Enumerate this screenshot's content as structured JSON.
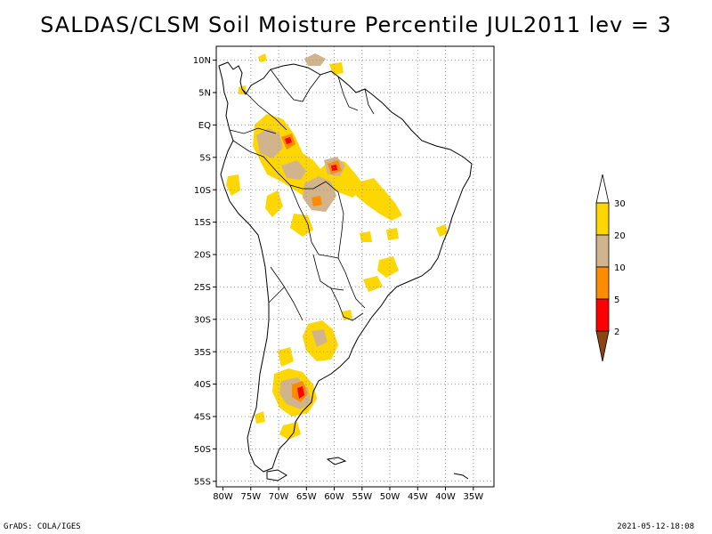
{
  "title": "SALDAS/CLSM Soil Moisture Percentile JUL2011 lev = 3",
  "footer": {
    "left": "GrADS: COLA/IGES",
    "right": "2021-05-12-18:08"
  },
  "map": {
    "lon_range": [
      -80,
      -33
    ],
    "lat_range": [
      -56,
      12
    ],
    "lon_ticks": [
      {
        "value": -80,
        "label": "80W"
      },
      {
        "value": -75,
        "label": "75W"
      },
      {
        "value": -70,
        "label": "70W"
      },
      {
        "value": -65,
        "label": "65W"
      },
      {
        "value": -60,
        "label": "60W"
      },
      {
        "value": -55,
        "label": "55W"
      },
      {
        "value": -50,
        "label": "50W"
      },
      {
        "value": -45,
        "label": "45W"
      },
      {
        "value": -40,
        "label": "40W"
      },
      {
        "value": -35,
        "label": "35W"
      }
    ],
    "lat_ticks": [
      {
        "value": 10,
        "label": "10N"
      },
      {
        "value": 5,
        "label": "5N"
      },
      {
        "value": 0,
        "label": "EQ"
      },
      {
        "value": -5,
        "label": "5S"
      },
      {
        "value": -10,
        "label": "10S"
      },
      {
        "value": -15,
        "label": "15S"
      },
      {
        "value": -20,
        "label": "20S"
      },
      {
        "value": -25,
        "label": "25S"
      },
      {
        "value": -30,
        "label": "30S"
      },
      {
        "value": -35,
        "label": "35S"
      },
      {
        "value": -40,
        "label": "40S"
      },
      {
        "value": -45,
        "label": "45S"
      },
      {
        "value": -50,
        "label": "50S"
      },
      {
        "value": -55,
        "label": "55S"
      }
    ]
  },
  "legend": {
    "colors": {
      "below_2": "#8b4513",
      "c2_5": "#ff0000",
      "c5_10": "#ff8c00",
      "c10_20": "#d2b48c",
      "c20_30": "#ffd700",
      "above_30": "#ffffff"
    },
    "labels": [
      "2",
      "5",
      "10",
      "20",
      "30"
    ]
  }
}
